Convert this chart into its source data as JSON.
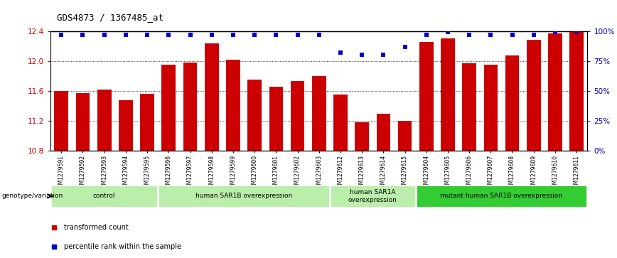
{
  "title": "GDS4873 / 1367485_at",
  "samples": [
    "GSM1279591",
    "GSM1279592",
    "GSM1279593",
    "GSM1279594",
    "GSM1279595",
    "GSM1279596",
    "GSM1279597",
    "GSM1279598",
    "GSM1279599",
    "GSM1279600",
    "GSM1279601",
    "GSM1279602",
    "GSM1279603",
    "GSM1279612",
    "GSM1279613",
    "GSM1279614",
    "GSM1279615",
    "GSM1279604",
    "GSM1279605",
    "GSM1279606",
    "GSM1279607",
    "GSM1279608",
    "GSM1279609",
    "GSM1279610",
    "GSM1279611"
  ],
  "bar_values": [
    11.6,
    11.57,
    11.62,
    11.48,
    11.56,
    11.95,
    11.98,
    12.23,
    12.02,
    11.75,
    11.66,
    11.73,
    11.8,
    11.55,
    11.18,
    11.3,
    11.2,
    12.25,
    12.3,
    11.97,
    11.95,
    12.07,
    12.28,
    12.37,
    12.4
  ],
  "percentile_values": [
    97,
    97,
    97,
    97,
    97,
    97,
    97,
    97,
    97,
    97,
    97,
    97,
    97,
    82,
    80,
    80,
    87,
    97,
    99,
    97,
    97,
    97,
    97,
    99,
    100
  ],
  "ymin": 10.8,
  "ymax": 12.4,
  "yticks_left": [
    10.8,
    11.2,
    11.6,
    12.0,
    12.4
  ],
  "yticks_right": [
    0,
    25,
    50,
    75,
    100
  ],
  "bar_color": "#cc0000",
  "dot_color": "#0000cc",
  "groups": [
    {
      "label": "control",
      "start": 0,
      "end": 4,
      "color": "#bbeeaa"
    },
    {
      "label": "human SAR1B overexpression",
      "start": 5,
      "end": 12,
      "color": "#bbeeaa"
    },
    {
      "label": "human SAR1A\noverexpression",
      "start": 13,
      "end": 16,
      "color": "#bbeeaa"
    },
    {
      "label": "mutant human SAR1B overexpression",
      "start": 17,
      "end": 24,
      "color": "#33cc33"
    }
  ],
  "genotype_label": "genotype/variation",
  "legend_items": [
    {
      "label": "transformed count",
      "color": "#cc0000"
    },
    {
      "label": "percentile rank within the sample",
      "color": "#0000cc"
    }
  ],
  "tickarea_color": "#cccccc",
  "title_fontsize": 9,
  "bar_fontsize": 7,
  "label_fontsize": 7
}
